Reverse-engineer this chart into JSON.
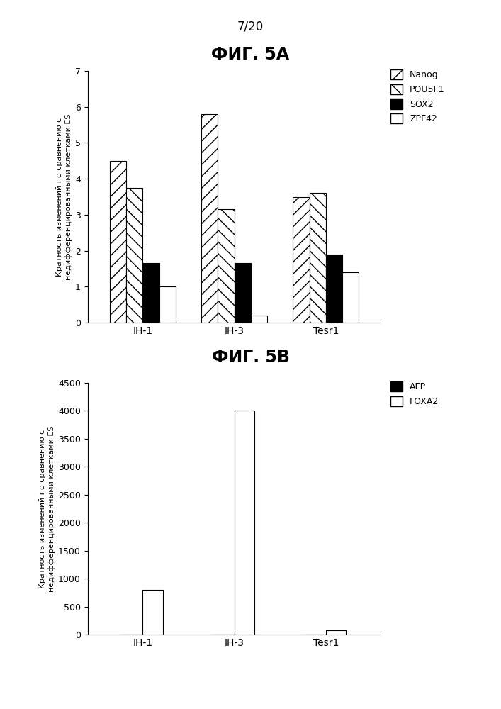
{
  "page_label": "7/20",
  "fig5a_title_ru": "ФИГ. 5A",
  "fig5b_title_ru": "ФИГ. 5B",
  "ylabel_line1": "Кратность изменений по сравнению с",
  "ylabel_line2": "недифференцированными клетками ES",
  "categories": [
    "IH-1",
    "IH-3",
    "Tesr1"
  ],
  "fig5a": {
    "Nanog": [
      4.5,
      5.8,
      3.5
    ],
    "POU5F1": [
      3.75,
      3.15,
      3.6
    ],
    "SOX2": [
      1.65,
      1.65,
      1.9
    ],
    "ZPF42": [
      1.0,
      0.2,
      1.4
    ]
  },
  "fig5b": {
    "AFP": [
      2,
      2,
      2
    ],
    "FOXA2": [
      800,
      4000,
      70
    ]
  },
  "fig5a_ylim": [
    0,
    7
  ],
  "fig5a_yticks": [
    0,
    1,
    2,
    3,
    4,
    5,
    6,
    7
  ],
  "fig5b_ylim": [
    0,
    4500
  ],
  "fig5b_yticks": [
    0,
    500,
    1000,
    1500,
    2000,
    2500,
    3000,
    3500,
    4000,
    4500
  ],
  "background_color": "#ffffff"
}
